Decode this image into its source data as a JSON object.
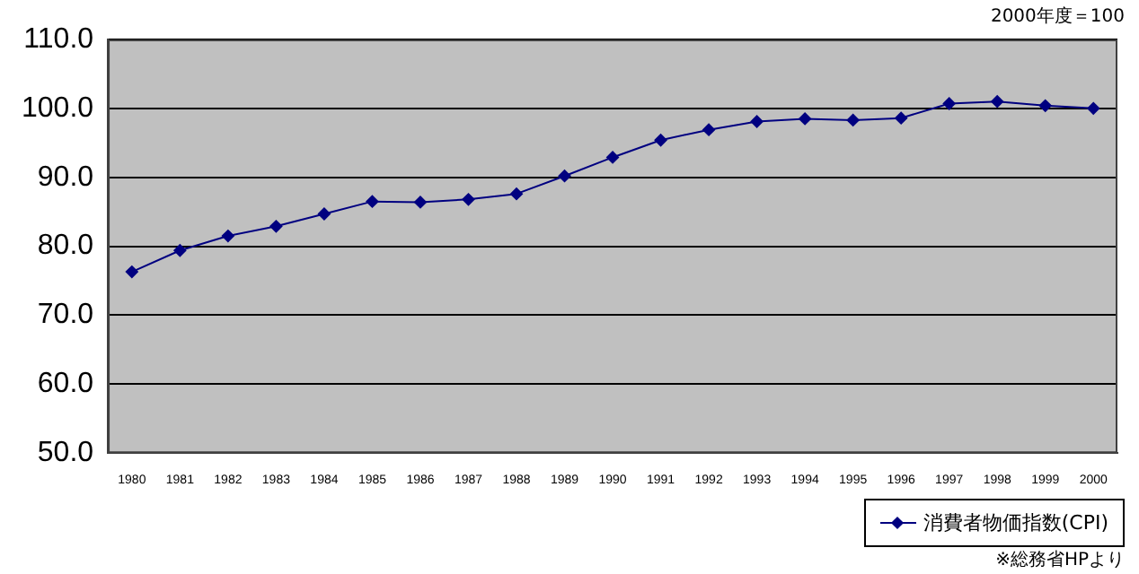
{
  "chart_data": {
    "type": "line",
    "categories": [
      "1980",
      "1981",
      "1982",
      "1983",
      "1984",
      "1985",
      "1986",
      "1987",
      "1988",
      "1989",
      "1990",
      "1991",
      "1992",
      "1993",
      "1994",
      "1995",
      "1996",
      "1997",
      "1998",
      "1999",
      "2000"
    ],
    "series": [
      {
        "name": "消費者物価指数(CPI)",
        "color": "#000080",
        "values": [
          76.3,
          79.4,
          81.5,
          82.9,
          84.7,
          86.5,
          86.4,
          86.8,
          87.6,
          90.2,
          92.9,
          95.4,
          96.9,
          98.1,
          98.5,
          98.3,
          98.6,
          100.7,
          101.0,
          100.4,
          100.0
        ]
      }
    ],
    "ylim": [
      50,
      110
    ],
    "yticks": [
      {
        "value": 50,
        "label": "50.0"
      },
      {
        "value": 60,
        "label": "60.0"
      },
      {
        "value": 70,
        "label": "70.0"
      },
      {
        "value": 80,
        "label": "80.0"
      },
      {
        "value": 90,
        "label": "90.0"
      },
      {
        "value": 100,
        "label": "100.0"
      },
      {
        "value": 110,
        "label": "110.0"
      }
    ],
    "grid": "y",
    "legend": "bottom right",
    "marker": "diamond",
    "line_style": "solid",
    "annotations": [
      "2000年度＝100",
      "※総務省HPより"
    ]
  }
}
